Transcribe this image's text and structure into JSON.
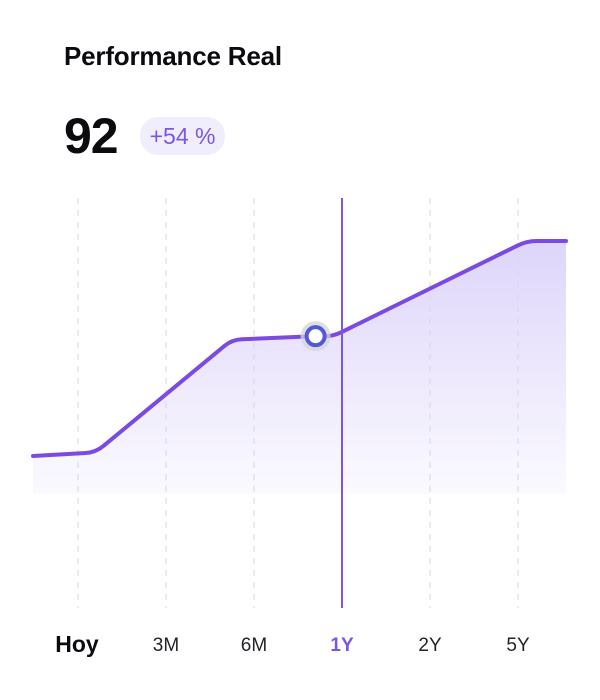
{
  "header": {
    "title": "Performance Real",
    "value": "92",
    "change_badge": "+54 %"
  },
  "timeframes": [
    {
      "label": "Hoy",
      "state": "current"
    },
    {
      "label": "3M",
      "state": "normal"
    },
    {
      "label": "6M",
      "state": "normal"
    },
    {
      "label": "1Y",
      "state": "selected"
    },
    {
      "label": "2Y",
      "state": "normal"
    },
    {
      "label": "5Y",
      "state": "normal"
    }
  ],
  "colors": {
    "line": "#7b4ae2",
    "area_top": "#dcd3fa",
    "marker_ring": "#5358d8",
    "marker_halo": "#d4d4da",
    "cursor": "#7b55e6",
    "grid": "#e3e3ee",
    "badge_bg": "#f0eefc",
    "badge_text": "#7b55e6"
  },
  "chart_data": {
    "type": "area",
    "title": "",
    "xlabel": "",
    "ylabel": "",
    "categories": [
      "Hoy",
      "3M",
      "6M",
      "1Y",
      "2Y",
      "5Y"
    ],
    "x": [
      -0.5,
      0.2,
      1.75,
      2.7,
      2.9,
      5.1,
      5.55
    ],
    "values": [
      57,
      58,
      90,
      91,
      91,
      118,
      118
    ],
    "ylim": [
      0,
      120
    ],
    "selected_category": "1Y",
    "marker": {
      "x": 2.7,
      "y": 91
    },
    "grid": "vertical-dashed",
    "legend": "none"
  }
}
